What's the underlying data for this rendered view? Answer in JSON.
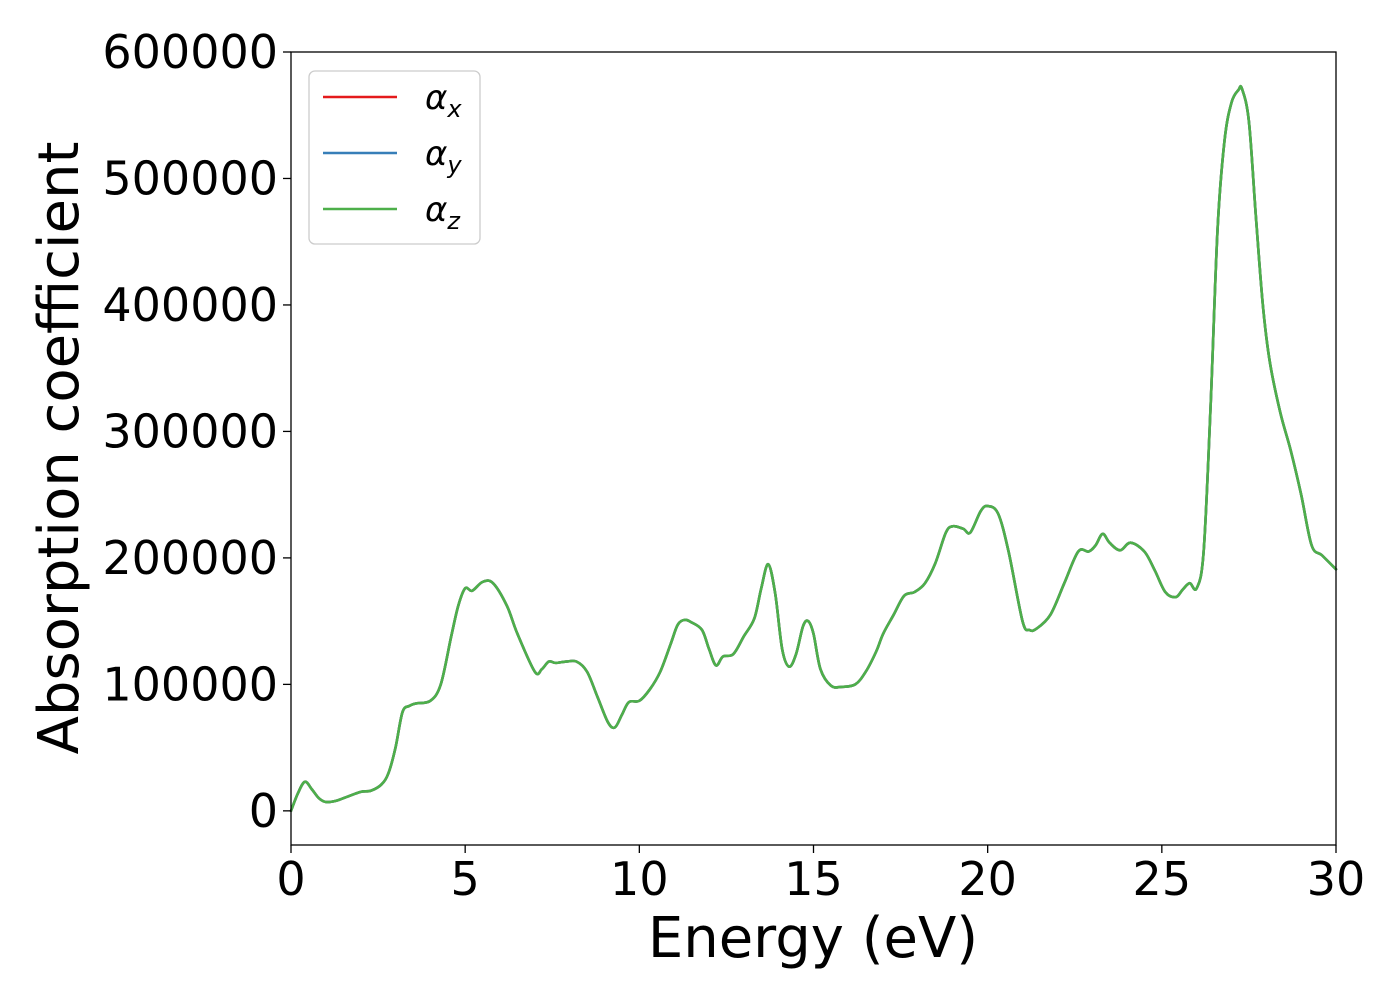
{
  "chart_data": {
    "type": "line",
    "xlabel": "Energy (eV)",
    "ylabel": "Absorption coefficient",
    "xlim": [
      0,
      30
    ],
    "ylim": [
      -27000,
      600000
    ],
    "xticks": [
      0,
      5,
      10,
      15,
      20,
      25,
      30
    ],
    "xtick_labels": [
      "0",
      "5",
      "10",
      "15",
      "20",
      "25",
      "30"
    ],
    "yticks": [
      0,
      100000,
      200000,
      300000,
      400000,
      500000,
      600000
    ],
    "ytick_labels": [
      "0",
      "100000",
      "200000",
      "300000",
      "400000",
      "500000",
      "600000"
    ],
    "grid": false,
    "legend_position": "upper-left",
    "x": [
      0.0,
      0.2,
      0.4,
      0.6,
      0.8,
      1.0,
      1.3,
      1.6,
      2.0,
      2.3,
      2.6,
      2.8,
      3.0,
      3.2,
      3.4,
      3.6,
      4.0,
      4.3,
      4.6,
      4.8,
      5.0,
      5.2,
      5.5,
      5.8,
      6.2,
      6.5,
      7.0,
      7.2,
      7.4,
      7.6,
      7.9,
      8.2,
      8.5,
      8.8,
      9.1,
      9.3,
      9.5,
      9.7,
      10.0,
      10.3,
      10.6,
      10.9,
      11.1,
      11.3,
      11.5,
      11.8,
      12.0,
      12.2,
      12.4,
      12.7,
      13.0,
      13.3,
      13.5,
      13.7,
      13.9,
      14.1,
      14.3,
      14.5,
      14.7,
      14.85,
      15.0,
      15.2,
      15.5,
      15.8,
      16.2,
      16.5,
      16.8,
      17.0,
      17.3,
      17.6,
      17.9,
      18.2,
      18.5,
      18.8,
      19.0,
      19.3,
      19.5,
      19.8,
      20.0,
      20.3,
      20.6,
      21.0,
      21.2,
      21.4,
      21.8,
      22.2,
      22.6,
      22.9,
      23.1,
      23.3,
      23.5,
      23.8,
      24.1,
      24.5,
      24.8,
      25.1,
      25.4,
      25.6,
      25.8,
      26.0,
      26.2,
      26.4,
      26.6,
      26.8,
      27.0,
      27.2,
      27.3,
      27.5,
      27.7,
      27.9,
      28.1,
      28.4,
      28.7,
      29.0,
      29.3,
      29.6,
      30.0
    ],
    "series": [
      {
        "name": "α_x",
        "color": "#e41a1c",
        "values": [
          0,
          14000,
          23000,
          17000,
          10000,
          7000,
          8000,
          11000,
          15000,
          16000,
          21000,
          30000,
          50000,
          78000,
          83000,
          85000,
          87000,
          100000,
          138000,
          162000,
          176000,
          174000,
          181000,
          180000,
          162000,
          140000,
          110000,
          112000,
          118000,
          117000,
          118000,
          118000,
          110000,
          90000,
          70000,
          66000,
          76000,
          86000,
          87000,
          96000,
          110000,
          132000,
          147000,
          151000,
          149000,
          143000,
          128000,
          115000,
          122000,
          124000,
          138000,
          152000,
          176000,
          195000,
          172000,
          128000,
          114000,
          124000,
          146000,
          150000,
          140000,
          112000,
          99000,
          98000,
          100000,
          110000,
          126000,
          140000,
          155000,
          170000,
          173000,
          180000,
          196000,
          220000,
          225000,
          223000,
          220000,
          237000,
          241000,
          235000,
          205000,
          150000,
          143000,
          144000,
          155000,
          180000,
          205000,
          205000,
          210000,
          219000,
          212000,
          206000,
          212000,
          205000,
          190000,
          173000,
          169000,
          175000,
          180000,
          176000,
          205000,
          320000,
          460000,
          530000,
          560000,
          570000,
          571000,
          545000,
          470000,
          400000,
          355000,
          315000,
          285000,
          250000,
          210000,
          202000,
          191000
        ]
      },
      {
        "name": "α_y",
        "color": "#377eb8",
        "values": [
          0,
          14000,
          23000,
          17000,
          10000,
          7000,
          8000,
          11000,
          15000,
          16000,
          21000,
          30000,
          50000,
          78000,
          83000,
          85000,
          87000,
          100000,
          138000,
          162000,
          176000,
          174000,
          181000,
          180000,
          162000,
          140000,
          110000,
          112000,
          118000,
          117000,
          118000,
          118000,
          110000,
          90000,
          70000,
          66000,
          76000,
          86000,
          87000,
          96000,
          110000,
          132000,
          147000,
          151000,
          149000,
          143000,
          128000,
          115000,
          122000,
          124000,
          138000,
          152000,
          176000,
          195000,
          172000,
          128000,
          114000,
          124000,
          146000,
          150000,
          140000,
          112000,
          99000,
          98000,
          100000,
          110000,
          126000,
          140000,
          155000,
          170000,
          173000,
          180000,
          196000,
          220000,
          225000,
          223000,
          220000,
          237000,
          241000,
          235000,
          205000,
          150000,
          143000,
          144000,
          155000,
          180000,
          205000,
          205000,
          210000,
          219000,
          212000,
          206000,
          212000,
          205000,
          190000,
          173000,
          169000,
          175000,
          180000,
          176000,
          205000,
          320000,
          460000,
          530000,
          560000,
          570000,
          571000,
          545000,
          470000,
          400000,
          355000,
          315000,
          285000,
          250000,
          210000,
          202000,
          191000
        ]
      },
      {
        "name": "α_z",
        "color": "#4daf4a",
        "values": [
          0,
          14000,
          23000,
          17000,
          10000,
          7000,
          8000,
          11000,
          15000,
          16000,
          21000,
          30000,
          50000,
          78000,
          83000,
          85000,
          87000,
          100000,
          138000,
          162000,
          176000,
          174000,
          181000,
          180000,
          162000,
          140000,
          110000,
          112000,
          118000,
          117000,
          118000,
          118000,
          110000,
          90000,
          70000,
          66000,
          76000,
          86000,
          87000,
          96000,
          110000,
          132000,
          147000,
          151000,
          149000,
          143000,
          128000,
          115000,
          122000,
          124000,
          138000,
          152000,
          176000,
          195000,
          172000,
          128000,
          114000,
          124000,
          146000,
          150000,
          140000,
          112000,
          99000,
          98000,
          100000,
          110000,
          126000,
          140000,
          155000,
          170000,
          173000,
          180000,
          196000,
          220000,
          225000,
          223000,
          220000,
          237000,
          241000,
          235000,
          205000,
          150000,
          143000,
          144000,
          155000,
          180000,
          205000,
          205000,
          210000,
          219000,
          212000,
          206000,
          212000,
          205000,
          190000,
          173000,
          169000,
          175000,
          180000,
          176000,
          205000,
          320000,
          460000,
          530000,
          560000,
          570000,
          571000,
          545000,
          470000,
          400000,
          355000,
          315000,
          285000,
          250000,
          210000,
          202000,
          191000
        ]
      }
    ],
    "legend": [
      {
        "symbol": "α",
        "sub": "x",
        "color": "#e41a1c"
      },
      {
        "symbol": "α",
        "sub": "y",
        "color": "#377eb8"
      },
      {
        "symbol": "α",
        "sub": "z",
        "color": "#4daf4a"
      }
    ]
  }
}
